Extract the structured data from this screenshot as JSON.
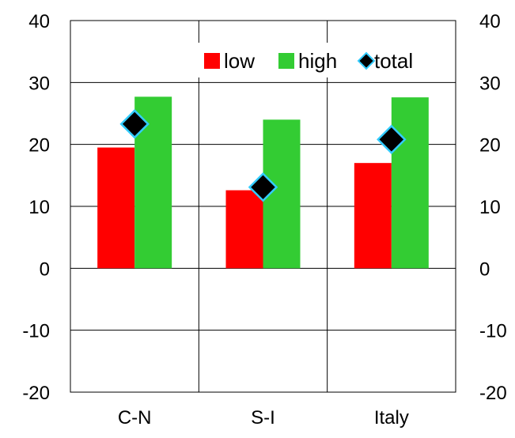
{
  "chart_data": {
    "type": "bar",
    "categories": [
      "C-N",
      "S-I",
      "Italy"
    ],
    "series": [
      {
        "name": "low",
        "kind": "bar",
        "color": "#ff0000",
        "values": [
          19.5,
          12.6,
          17.0
        ]
      },
      {
        "name": "high",
        "kind": "bar",
        "color": "#33cc33",
        "values": [
          27.7,
          24.0,
          27.6
        ]
      },
      {
        "name": "total",
        "kind": "marker",
        "marker": "diamond",
        "color": "#000000",
        "edge_color": "#33ccff",
        "values": [
          23.3,
          13.1,
          20.8
        ]
      }
    ],
    "ylim": [
      -20,
      40
    ],
    "yticks": [
      -20,
      -10,
      0,
      10,
      20,
      30,
      40
    ],
    "ytick_labels": [
      "-20",
      "-10",
      "0",
      "10",
      "20",
      "30",
      "40"
    ],
    "secondary_yaxis": true,
    "grid": {
      "horizontal": true,
      "vertical_category_separators": true
    },
    "legend": {
      "position": "top-right",
      "entries": [
        "low",
        "high",
        "total"
      ]
    },
    "title": "",
    "xlabel": "",
    "ylabel": ""
  }
}
